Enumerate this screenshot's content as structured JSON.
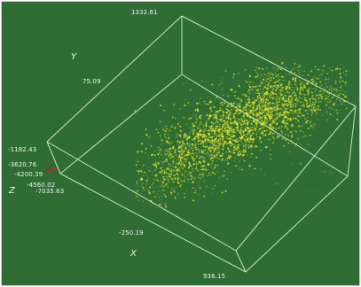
{
  "scene": {
    "background_color": "#2f6d35",
    "box_color": "#cfe8cc",
    "point_color": "#f4ef2e",
    "point_color_alt": "#d9dc21",
    "axis_marker_color": "#d81f2a"
  },
  "axes": {
    "x_label": "X",
    "y_label": "Y",
    "z_label": "Z"
  },
  "tick_labels": {
    "top": "1332.61",
    "y_upper": "75.09",
    "left_1": "-1182.43",
    "left_2": "-3620.76",
    "left_3": "-4200.39",
    "left_4": "-4560.02",
    "left_5": "-7035.63",
    "x_inner": "-250.19",
    "x_right": "936.15"
  }
}
